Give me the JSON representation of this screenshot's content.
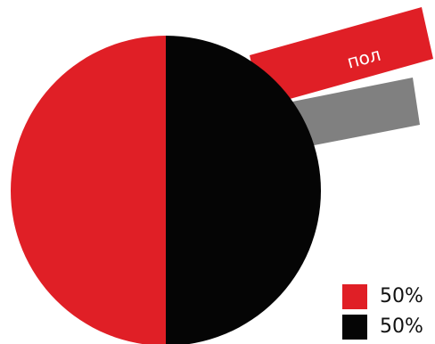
{
  "colors": {
    "red": "#e01f26",
    "black": "#050505",
    "gray": "#808080",
    "background": "#ffffff"
  },
  "chart_data": {
    "type": "pie",
    "slices": [
      {
        "label": "50%",
        "value": 50,
        "color": "#e01f26"
      },
      {
        "label": "50%",
        "value": 50,
        "color": "#050505"
      }
    ],
    "legend_position": "bottom-right",
    "annotation_text": "пол"
  }
}
